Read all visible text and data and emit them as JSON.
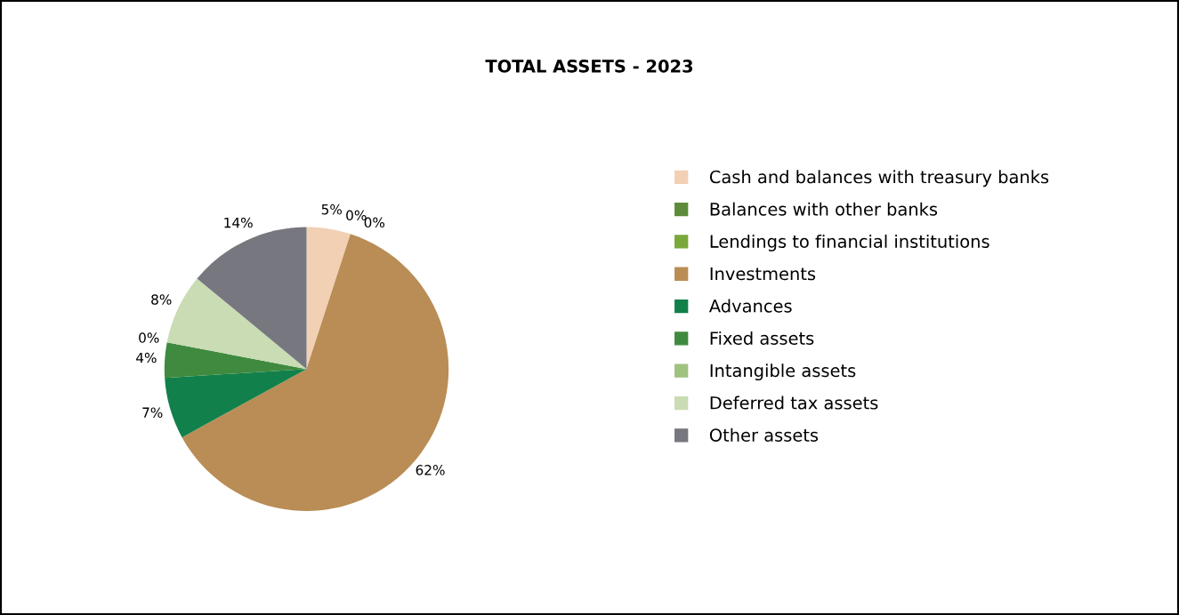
{
  "chart_data": {
    "type": "pie",
    "title": "TOTAL ASSETS - 2023",
    "categories": [
      "Cash and balances with treasury banks",
      "Balances with other banks",
      "Lendings to financial institutions",
      "Investments",
      "Advances",
      "Fixed assets",
      "Intangible assets",
      "Deferred tax assets",
      "Other assets"
    ],
    "values": [
      5,
      0,
      0,
      62,
      7,
      4,
      0,
      8,
      14
    ],
    "value_labels": [
      "5%",
      "0%",
      "0%",
      "62%",
      "7%",
      "4%",
      "0%",
      "8%",
      "14%"
    ],
    "colors": [
      "#f2d0b4",
      "#5e8c3a",
      "#7aa83a",
      "#b98d55",
      "#12804a",
      "#3f8a3f",
      "#9fc27e",
      "#c9dcb3",
      "#77777f"
    ],
    "legend": "right"
  }
}
